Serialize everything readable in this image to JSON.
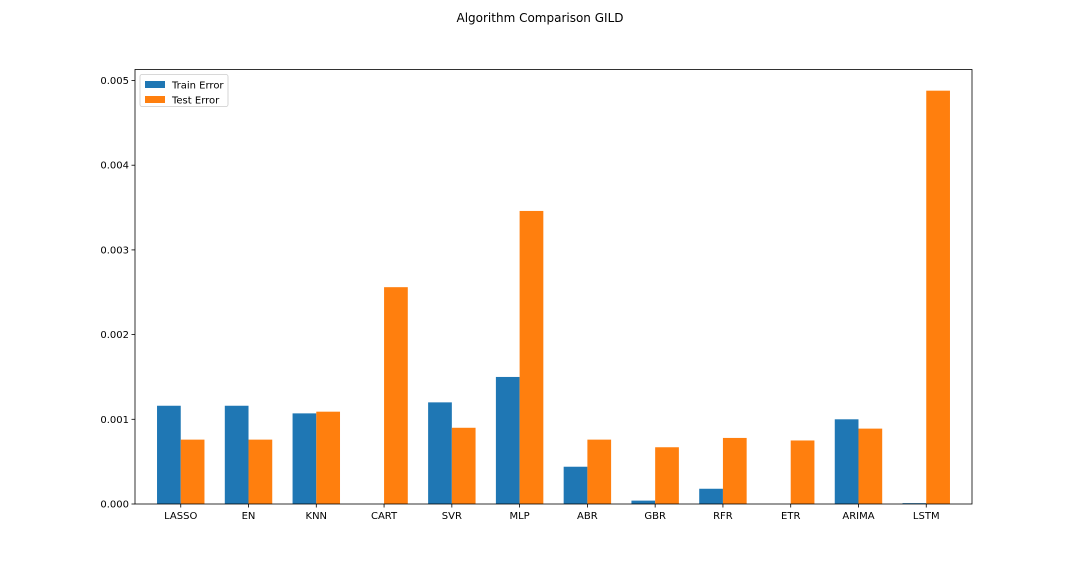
{
  "chart_data": {
    "type": "bar",
    "title": "Algorithm Comparison GILD",
    "xlabel": "",
    "ylabel": "",
    "categories": [
      "LASSO",
      "EN",
      "KNN",
      "CART",
      "SVR",
      "MLP",
      "ABR",
      "GBR",
      "RFR",
      "ETR",
      "ARIMA",
      "LSTM"
    ],
    "series": [
      {
        "name": "Train Error",
        "color": "#1f77b4",
        "values": [
          0.00116,
          0.00116,
          0.00107,
          0.0,
          0.0012,
          0.0015,
          0.00044,
          4e-05,
          0.00018,
          0.0,
          0.001,
          1e-05
        ]
      },
      {
        "name": "Test Error",
        "color": "#ff7f0e",
        "values": [
          0.00076,
          0.00076,
          0.00109,
          0.00256,
          0.0009,
          0.00346,
          0.00076,
          0.00067,
          0.00078,
          0.00075,
          0.00089,
          0.00488
        ]
      }
    ],
    "ylim": [
      0,
      0.00513
    ],
    "yticks": [
      0.0,
      0.001,
      0.002,
      0.003,
      0.004,
      0.005
    ],
    "ytick_labels": [
      "0.000",
      "0.001",
      "0.002",
      "0.003",
      "0.004",
      "0.005"
    ],
    "grid": false,
    "legend": "top-left"
  }
}
